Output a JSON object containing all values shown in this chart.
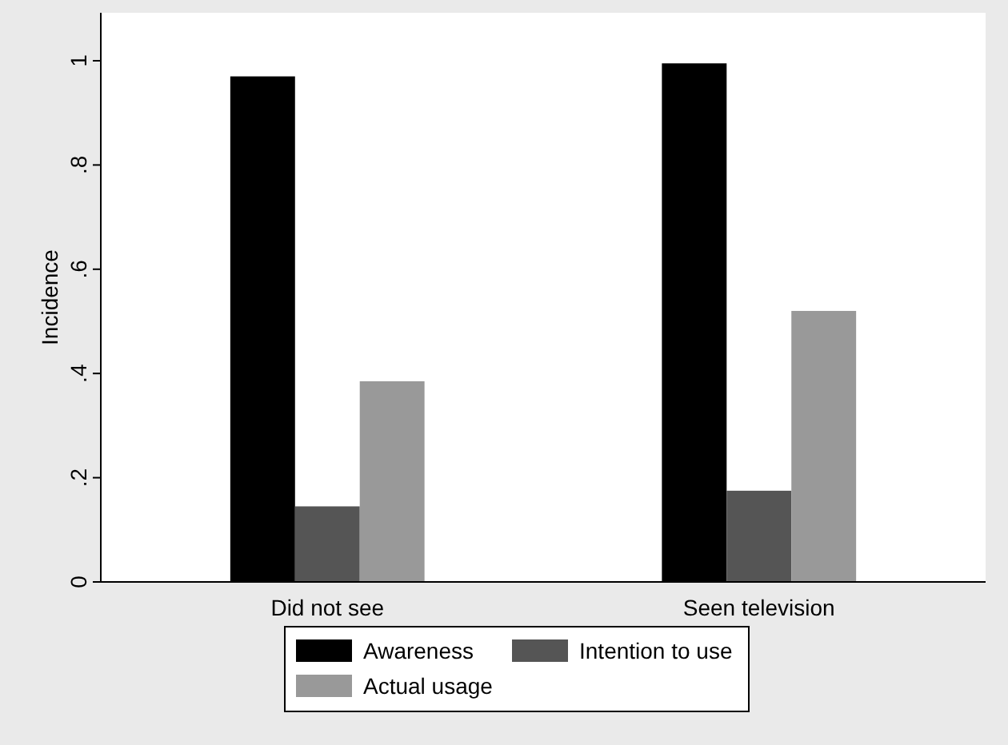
{
  "chart_data": {
    "type": "bar",
    "ylabel": "Incidence",
    "categories": [
      "Did not see",
      "Seen television"
    ],
    "series": [
      {
        "name": "Awareness",
        "color": "#000000",
        "values": [
          0.97,
          0.995
        ]
      },
      {
        "name": "Intention to use",
        "color": "#555555",
        "values": [
          0.145,
          0.175
        ]
      },
      {
        "name": "Actual usage",
        "color": "#999999",
        "values": [
          0.385,
          0.52
        ]
      }
    ],
    "ylim": [
      0,
      1
    ],
    "yticks": [
      0,
      {
        "value": 0.2,
        "label": ".2"
      },
      {
        "value": 0.4,
        "label": ".4"
      },
      {
        "value": 0.6,
        "label": ".6"
      },
      {
        "value": 0.8,
        "label": ".8"
      },
      1
    ],
    "grid": false,
    "legend": "bottom"
  }
}
